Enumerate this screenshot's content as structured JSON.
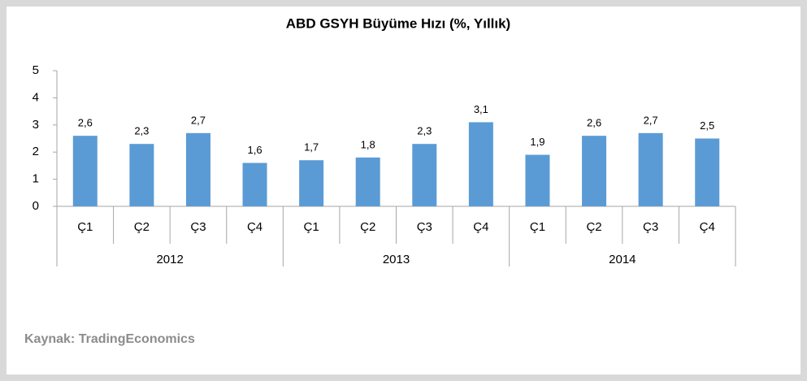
{
  "chart_data": {
    "type": "bar",
    "title": "ABD GSYH Büyüme Hızı (%, Yıllık)",
    "categories": [
      "Ç1",
      "Ç2",
      "Ç3",
      "Ç4",
      "Ç1",
      "Ç2",
      "Ç3",
      "Ç4",
      "Ç1",
      "Ç2",
      "Ç3",
      "Ç4"
    ],
    "groups": [
      "2012",
      "2013",
      "2014"
    ],
    "values": [
      2.6,
      2.3,
      2.7,
      1.6,
      1.7,
      1.8,
      2.3,
      3.1,
      1.9,
      2.6,
      2.7,
      2.5
    ],
    "value_labels": [
      "2,6",
      "2,3",
      "2,7",
      "1,6",
      "1,7",
      "1,8",
      "2,3",
      "3,1",
      "1,9",
      "2,6",
      "2,7",
      "2,5"
    ],
    "color": "#5b9bd5",
    "ylim": [
      0,
      5
    ],
    "yticks": [
      0,
      1,
      2,
      3,
      4,
      5
    ],
    "grid": false,
    "source": "Kaynak: TradingEconomics"
  }
}
